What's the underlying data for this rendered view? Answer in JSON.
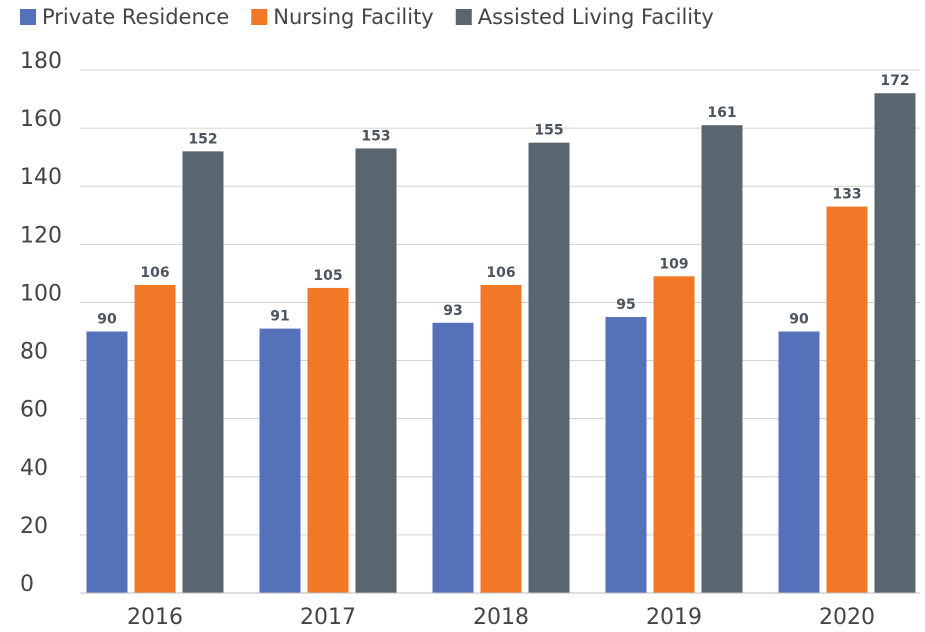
{
  "chart_data": {
    "type": "bar",
    "categories": [
      "2016",
      "2017",
      "2018",
      "2019",
      "2020"
    ],
    "series": [
      {
        "name": "Private Residence",
        "color": "#5571b9",
        "values": [
          90,
          91,
          93,
          95,
          90
        ]
      },
      {
        "name": "Nursing Facility",
        "color": "#f07826",
        "values": [
          106,
          105,
          106,
          109,
          133
        ]
      },
      {
        "name": "Assisted Living Facility",
        "color": "#5a666f",
        "values": [
          152,
          153,
          155,
          161,
          172
        ]
      }
    ],
    "ylim": [
      0,
      180
    ],
    "yticks": [
      0,
      20,
      40,
      60,
      80,
      100,
      120,
      140,
      160,
      180
    ],
    "grid": true,
    "legend": "top"
  }
}
